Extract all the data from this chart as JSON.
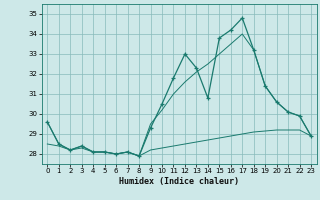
{
  "title": "",
  "xlabel": "Humidex (Indice chaleur)",
  "ylabel": "",
  "bg_color": "#cde8e8",
  "grid_color": "#88bbbb",
  "line_color": "#1a7a6e",
  "x": [
    0,
    1,
    2,
    3,
    4,
    5,
    6,
    7,
    8,
    9,
    10,
    11,
    12,
    13,
    14,
    15,
    16,
    17,
    18,
    19,
    20,
    21,
    22,
    23
  ],
  "y_main": [
    29.6,
    28.5,
    28.2,
    28.4,
    28.1,
    28.1,
    28.0,
    28.1,
    27.9,
    29.3,
    30.5,
    31.8,
    33.0,
    32.3,
    30.8,
    33.8,
    34.2,
    34.8,
    33.2,
    31.4,
    30.6,
    30.1,
    29.9,
    28.9
  ],
  "y_min": [
    28.5,
    28.4,
    28.2,
    28.3,
    28.1,
    28.1,
    28.0,
    28.1,
    27.9,
    28.2,
    28.3,
    28.4,
    28.5,
    28.6,
    28.7,
    28.8,
    28.9,
    29.0,
    29.1,
    29.15,
    29.2,
    29.2,
    29.2,
    28.9
  ],
  "y_max": [
    29.6,
    28.5,
    28.2,
    28.4,
    28.1,
    28.1,
    28.0,
    28.1,
    27.9,
    29.5,
    30.2,
    31.0,
    31.6,
    32.1,
    32.5,
    33.0,
    33.5,
    34.0,
    33.2,
    31.4,
    30.6,
    30.1,
    29.9,
    28.9
  ],
  "ylim": [
    27.5,
    35.5
  ],
  "xlim": [
    -0.5,
    23.5
  ],
  "yticks": [
    28,
    29,
    30,
    31,
    32,
    33,
    34,
    35
  ],
  "xticks": [
    0,
    1,
    2,
    3,
    4,
    5,
    6,
    7,
    8,
    9,
    10,
    11,
    12,
    13,
    14,
    15,
    16,
    17,
    18,
    19,
    20,
    21,
    22,
    23
  ]
}
